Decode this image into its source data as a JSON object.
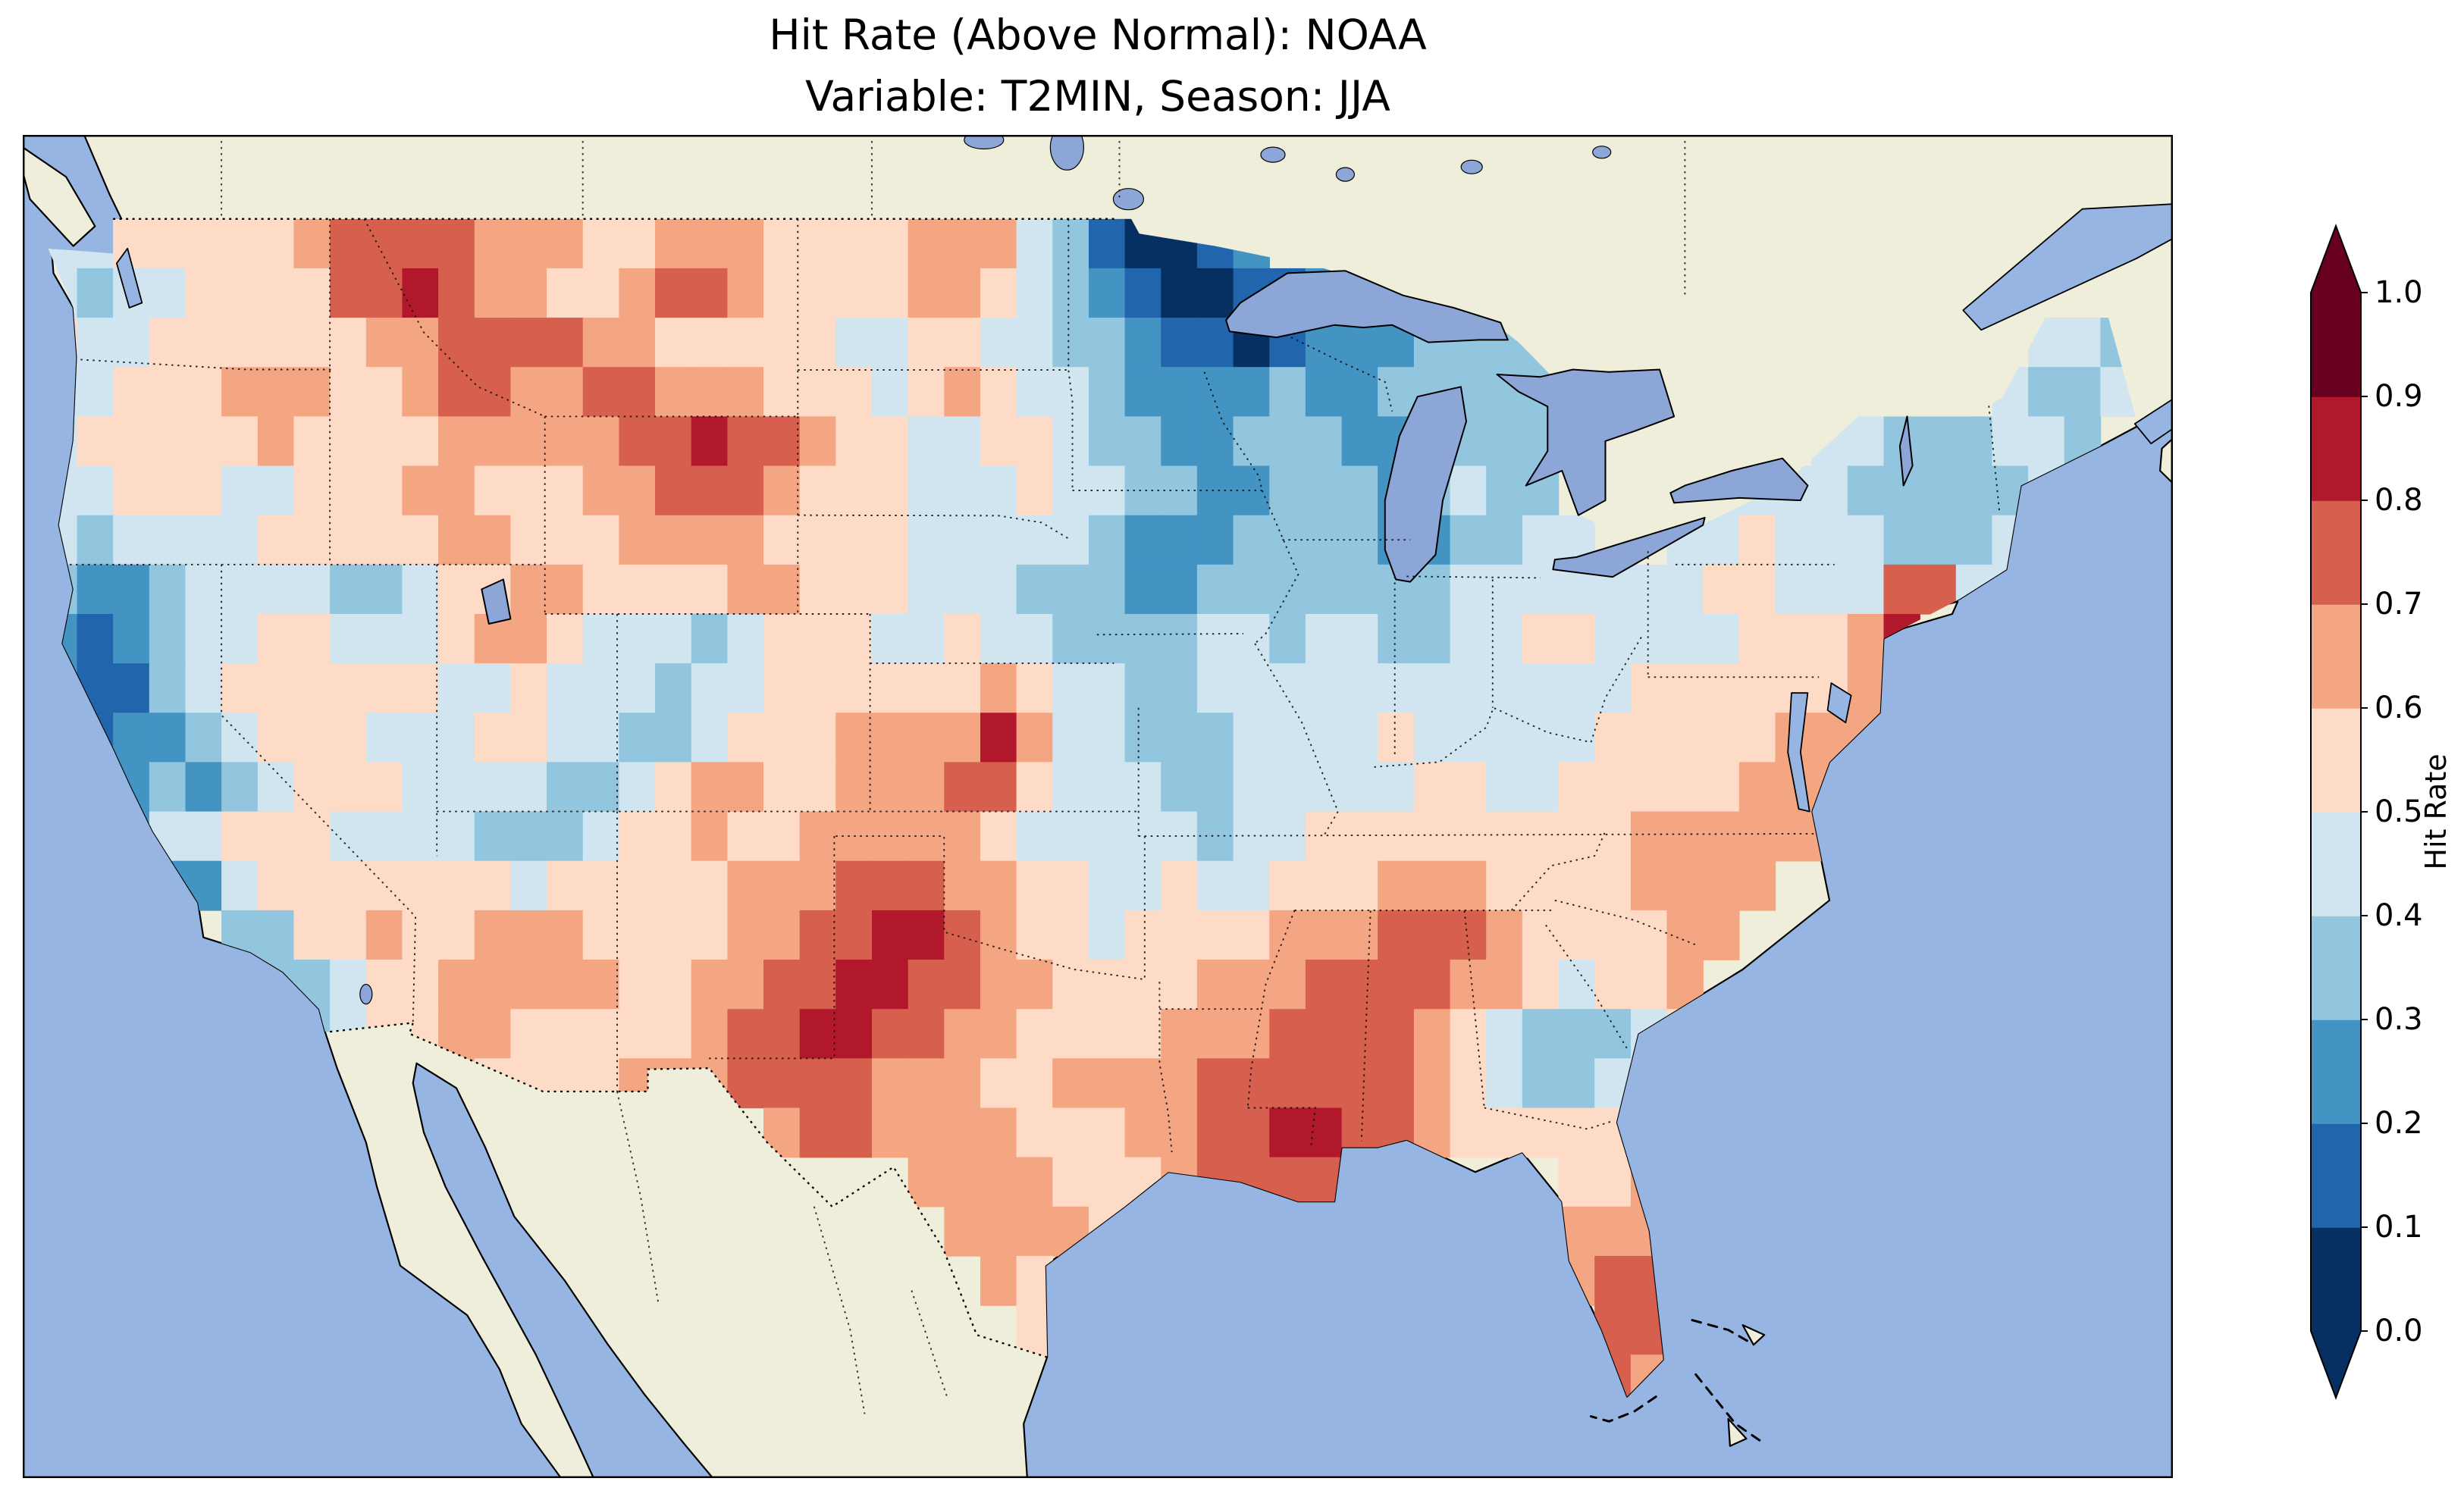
{
  "title": {
    "line1": "Hit Rate (Above Normal): NOAA",
    "line2": "Variable: T2MIN, Season: JJA"
  },
  "colorbar": {
    "label": "Hit Rate",
    "ticks": [
      "1.0",
      "0.9",
      "0.8",
      "0.7",
      "0.6",
      "0.5",
      "0.4",
      "0.3",
      "0.2",
      "0.1",
      "0.0"
    ],
    "colors_low_to_high": [
      "#053061",
      "#2166ac",
      "#4393c3",
      "#92c5de",
      "#d1e5f0",
      "#fddbc7",
      "#f4a582",
      "#d6604d",
      "#b2182b",
      "#67001f"
    ],
    "extend_low_color": "#053061",
    "extend_high_color": "#67001f"
  },
  "map": {
    "ocean_color": "#97b5e2",
    "land_color": "#efeedb",
    "lake_color": "#8da6d8",
    "coast_color": "#000000"
  },
  "chart_data": {
    "type": "heatmap",
    "title": "Hit Rate (Above Normal): NOAA",
    "subtitle": "Variable: T2MIN, Season: JJA",
    "dataset": "NOAA",
    "variable": "T2MIN",
    "season": "JJA",
    "value_name": "Hit Rate",
    "value_range": [
      0.0,
      1.0
    ],
    "colormap": "RdBu_r, 10 discrete 0.1 bins, extend arrows both ends",
    "region": "Contiguous United States (land only); surrounding Canada/Mexico unshaded",
    "grid": {
      "lon_west": -125,
      "lon_east": -67,
      "lat_north": 49,
      "lat_south": 25,
      "cell_size_deg": 1,
      "encoding": "rows north to south; each row = segments joined west(125W) to east(67W); digit d = hit-rate bin [d/10,(d+1)/10); bare number = run of no-data cells",
      "rows": [
        [
          "4455555677",
          "7766655666",
          "5555666431",
          "0012",
          24
        ],
        [
          "4344555577",
          "8766556776",
          "5555665432",
          "1001122",
          21
        ],
        [
          "5445555556",
          "6777766555",
          "5544554433",
          "2110122233",
          "33",
          13,
          "443"
        ],
        [
          "4455566655",
          "6776677666",
          "5554565443",
          "2222322333",
          "33",
          12,
          "4334"
        ],
        [
          "455555655",
          "55666667787765",
          "544554",
          "332233",
          "3223",
          "333",
          7,
          "443",
          "334",
          "43",
          1
        ],
        [
          "4455544",
          "55",
          "56655",
          "5667",
          "77655",
          "544454",
          "433223",
          "3323",
          "433",
          4,
          "444",
          "433",
          "333",
          "44",
          1
        ],
        [
          "4344445",
          "55",
          "55665",
          "5566",
          "6655",
          "5544444",
          "322233",
          "3322",
          "334",
          "4",
          2,
          "4454",
          "443",
          "334",
          "4",
          2
        ],
        [
          "3223",
          "444",
          "4334",
          "556",
          "655",
          "5566",
          "555",
          "44433",
          "322333",
          "3333",
          "444",
          "444",
          "4554",
          "447",
          "744",
          "4",
          2
        ],
        [
          "2123",
          "445",
          "5444",
          "566",
          "544",
          "434",
          "5554",
          "45443",
          "333443",
          "4433",
          "445",
          "544",
          "4455",
          "568",
          6
        ],
        [
          "2113",
          "455",
          "5555",
          "445",
          "444",
          "344",
          "5555",
          "55654",
          "433444",
          "4444",
          "444",
          "445",
          "5555",
          "566",
          6
        ],
        [
          "1122",
          "345",
          "5544",
          "455",
          "443",
          "345",
          "5566",
          "66864",
          "433344",
          "4454",
          "444",
          "455",
          "5556",
          "66",
          7
        ],
        [
          "1123",
          "234",
          "5554",
          "444",
          "334",
          "566",
          "5566",
          "67754",
          "443344",
          "4445",
          "544",
          "555",
          "5566",
          "65",
          7
        ],
        [
          "2124",
          "455",
          "5444",
          "433",
          "345",
          "565",
          "5666",
          "66544",
          "444344",
          "5555",
          "555",
          "556",
          "6666",
          "6",
          8
        ],
        [
          3,
          "22",
          "45",
          "5555",
          "554",
          "555",
          "556",
          "6677",
          "766",
          "55",
          "445445",
          "5566",
          "655",
          "556",
          "666",
          10
        ],
        [
          5,
          "33",
          "5565",
          "566",
          "655",
          "556",
          "6778",
          "876",
          "55",
          "455556",
          "6677",
          "765",
          "555",
          "66",
          11
        ],
        [
          6,
          "33",
          "455",
          "666",
          "665",
          "566",
          "7788",
          "776",
          "65",
          "555666",
          "7777",
          "665",
          "455",
          "6",
          12
        ],
        [
          7,
          "34",
          "55",
          "665",
          "555",
          "567",
          "7887",
          "766",
          "55",
          "556667",
          "7776",
          "543",
          "334",
          "5",
          12
        ],
        [
          11,
          "655",
          "556",
          "667",
          "7776",
          "665",
          "56",
          "666777",
          "7776",
          "543",
          "345",
          "5",
          12
        ],
        [
          20,
          "6776",
          "666",
          "55",
          "566778",
          "8776",
          "555",
          "556",
          "6",
          12
        ],
        [
          24,
          "666",
          "65",
          "556",
          "777",
          "7",
          6,
          "556",
          "6",
          12
        ],
        [
          25,
          "6666",
          "5",
          12,
          "666",
          "6",
          12
        ],
        [
          26,
          "65",
          14,
          "677",
          13
        ],
        [
          27,
          "5",
          15,
          "77",
          13
        ],
        [
          27,
          "5",
          15,
          "76",
          13
        ]
      ]
    },
    "observations": {
      "lowest_hit_rate_area": "northern Minnesota (0.0–0.1, dark navy)",
      "low_areas": "upper Midwest (MN/WI/MI), coastal & northern California, SE Georgia patch",
      "highest_hit_rate_areas": "west Texas, Gulf Coast (LA/MS/AL), Florida peninsula, Montana/N Idaho band, central Kansas spot, NJ coast spot (0.7–0.9)"
    }
  }
}
